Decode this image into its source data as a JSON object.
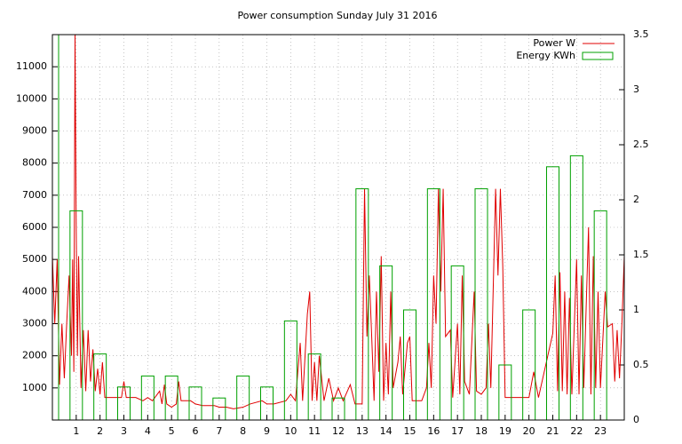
{
  "chart_data": {
    "type": "line",
    "title": "Power consumption Sunday July 31 2016",
    "xlim": [
      0,
      24
    ],
    "xticks": [
      1,
      2,
      3,
      4,
      5,
      6,
      7,
      8,
      9,
      10,
      11,
      12,
      13,
      14,
      15,
      16,
      17,
      18,
      19,
      20,
      21,
      22,
      23
    ],
    "ylim": [
      0,
      12000
    ],
    "yticks": [
      1000,
      2000,
      3000,
      4000,
      5000,
      6000,
      7000,
      8000,
      9000,
      10000,
      11000
    ],
    "y2lim": [
      0,
      3.5
    ],
    "y2ticks": [
      0,
      0.5,
      1,
      1.5,
      2,
      2.5,
      3,
      3.5
    ],
    "grid": true,
    "legend": "top-right",
    "series": [
      {
        "name": "Power W",
        "color": "#e00000",
        "type": "line",
        "x": [
          0.0,
          0.1,
          0.2,
          0.3,
          0.4,
          0.5,
          0.6,
          0.7,
          0.8,
          0.85,
          0.9,
          0.95,
          1.0,
          1.05,
          1.1,
          1.2,
          1.3,
          1.4,
          1.5,
          1.6,
          1.7,
          1.8,
          1.9,
          2.0,
          2.1,
          2.2,
          2.5,
          2.9,
          3.0,
          3.1,
          3.5,
          3.8,
          4.0,
          4.2,
          4.5,
          4.6,
          4.7,
          4.8,
          5.0,
          5.2,
          5.3,
          5.4,
          5.8,
          6.0,
          6.3,
          6.8,
          7.0,
          7.3,
          7.6,
          8.0,
          8.3,
          8.8,
          9.0,
          9.3,
          9.8,
          10.0,
          10.2,
          10.4,
          10.5,
          10.7,
          10.8,
          10.9,
          11.0,
          11.1,
          11.2,
          11.4,
          11.6,
          11.8,
          12.0,
          12.2,
          12.5,
          12.7,
          13.0,
          13.1,
          13.2,
          13.3,
          13.4,
          13.5,
          13.6,
          13.7,
          13.8,
          13.9,
          14.0,
          14.1,
          14.2,
          14.3,
          14.5,
          14.6,
          14.7,
          14.9,
          15.0,
          15.1,
          15.5,
          15.7,
          15.8,
          15.9,
          16.0,
          16.1,
          16.2,
          16.3,
          16.4,
          16.5,
          16.7,
          16.8,
          17.0,
          17.1,
          17.2,
          17.3,
          17.5,
          17.7,
          17.8,
          18.0,
          18.2,
          18.3,
          18.4,
          18.6,
          18.7,
          18.8,
          18.9,
          19.0,
          19.3,
          19.5,
          20.0,
          20.2,
          20.4,
          21.0,
          21.1,
          21.2,
          21.3,
          21.4,
          21.5,
          21.6,
          21.7,
          21.8,
          21.9,
          22.0,
          22.1,
          22.2,
          22.3,
          22.5,
          22.6,
          22.7,
          22.8,
          22.9,
          23.0,
          23.2,
          23.3,
          23.5,
          23.6,
          23.7,
          23.8,
          23.9,
          24.0
        ],
        "values": [
          5100,
          3000,
          5000,
          1100,
          3000,
          1300,
          3000,
          4500,
          2000,
          5000,
          1500,
          12000,
          6000,
          2000,
          5100,
          1000,
          2800,
          900,
          2800,
          1200,
          2200,
          900,
          1600,
          800,
          1800,
          700,
          700,
          700,
          1200,
          700,
          700,
          600,
          700,
          600,
          900,
          500,
          1100,
          500,
          400,
          500,
          1200,
          600,
          600,
          500,
          450,
          450,
          400,
          400,
          350,
          400,
          500,
          600,
          500,
          500,
          600,
          800,
          600,
          2400,
          600,
          3300,
          4000,
          600,
          1800,
          600,
          2000,
          600,
          1300,
          600,
          1000,
          600,
          1100,
          500,
          500,
          7200,
          2600,
          4500,
          2600,
          600,
          4000,
          1500,
          5100,
          600,
          2400,
          800,
          4000,
          1000,
          1800,
          2600,
          800,
          2400,
          2600,
          600,
          600,
          1000,
          2400,
          1000,
          4500,
          3000,
          7200,
          4000,
          7200,
          2600,
          2800,
          700,
          3000,
          800,
          4500,
          1200,
          800,
          4000,
          900,
          800,
          1000,
          3000,
          1000,
          7200,
          4500,
          7200,
          4800,
          700,
          700,
          700,
          700,
          1500,
          700,
          2700,
          4500,
          900,
          4600,
          900,
          4000,
          800,
          3800,
          800,
          2900,
          5000,
          800,
          4500,
          1000,
          6000,
          800,
          5100,
          1000,
          4000,
          1000,
          4000,
          2900,
          3000,
          1200,
          2800,
          1300,
          3000,
          5100
        ]
      },
      {
        "name": "Energy KWh",
        "color": "#00a000",
        "type": "bar",
        "axis": "y2",
        "x": [
          0,
          1,
          2,
          3,
          4,
          5,
          6,
          7,
          8,
          9,
          10,
          11,
          12,
          13,
          14,
          15,
          16,
          17,
          18,
          19,
          20,
          21,
          22,
          23
        ],
        "values": [
          3.6,
          1.9,
          0.6,
          0.3,
          0.4,
          0.4,
          0.3,
          0.2,
          0.4,
          0.3,
          0.9,
          0.6,
          0.2,
          2.1,
          1.4,
          1.0,
          2.1,
          1.4,
          2.1,
          0.5,
          1.0,
          2.3,
          2.4,
          1.9
        ]
      }
    ]
  }
}
